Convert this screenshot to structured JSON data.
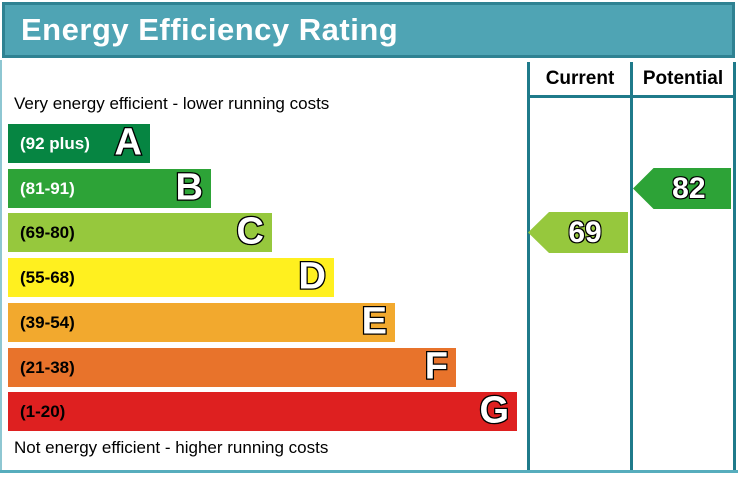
{
  "title": "Energy Efficiency Rating",
  "columns": {
    "current_label": "Current",
    "potential_label": "Potential"
  },
  "notes": {
    "top": "Very energy efficient - lower running costs",
    "bottom": "Not energy efficient - higher running costs"
  },
  "colors": {
    "banner_bg": "#4FA4B4",
    "banner_border": "#2F8292",
    "grid_line": "#1F7A8A",
    "outer_border": "#57ADBD"
  },
  "chart_data": {
    "type": "bar",
    "title": "Energy Efficiency Rating",
    "bands": [
      {
        "letter": "A",
        "range": "(92 plus)",
        "min": 92,
        "max": 100,
        "color": "#068542",
        "label_color": "#ffffff"
      },
      {
        "letter": "B",
        "range": "(81-91)",
        "min": 81,
        "max": 91,
        "color": "#2DA337",
        "label_color": "#ffffff"
      },
      {
        "letter": "C",
        "range": "(69-80)",
        "min": 69,
        "max": 80,
        "color": "#96C83D",
        "label_color": "#000000"
      },
      {
        "letter": "D",
        "range": "(55-68)",
        "min": 55,
        "max": 68,
        "color": "#FFF01F",
        "label_color": "#000000"
      },
      {
        "letter": "E",
        "range": "(39-54)",
        "min": 39,
        "max": 54,
        "color": "#F2A92E",
        "label_color": "#000000"
      },
      {
        "letter": "F",
        "range": "(21-38)",
        "min": 21,
        "max": 38,
        "color": "#E8732B",
        "label_color": "#000000"
      },
      {
        "letter": "G",
        "range": "(1-20)",
        "min": 1,
        "max": 20,
        "color": "#DE2020",
        "label_color": "#000000"
      }
    ],
    "markers": [
      {
        "column": "current",
        "value": 69,
        "band": "C",
        "color": "#96C83D"
      },
      {
        "column": "potential",
        "value": 82,
        "band": "B",
        "color": "#2DA337"
      }
    ]
  }
}
